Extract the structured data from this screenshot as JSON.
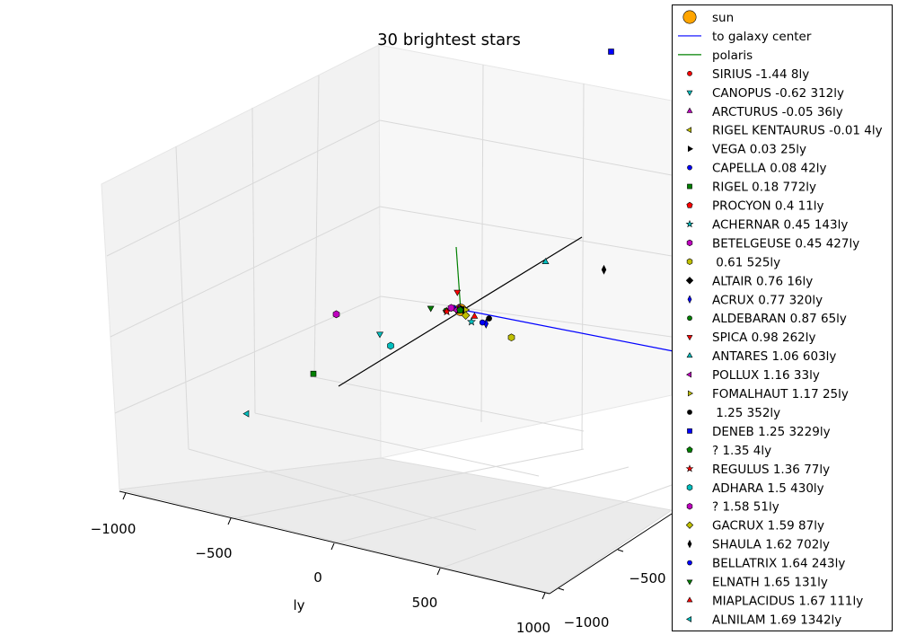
{
  "chart_data": {
    "type": "scatter",
    "projection": "3d",
    "title": "30 brightest stars",
    "xlabel": "ly",
    "x_ticks": [
      "−1000",
      "−500",
      "0",
      "500",
      "1000"
    ],
    "y_ticks_visible": [
      "−500",
      "−1000"
    ],
    "grid": true,
    "legend_placement": "right, outside plot",
    "lines": [
      {
        "name": "to galaxy center",
        "color": "#0000ff"
      },
      {
        "name": "polaris",
        "color": "#008000"
      }
    ],
    "sun": {
      "name": "sun",
      "color": "#ffa500",
      "marker": "circle"
    },
    "stars": [
      {
        "name": "SIRIUS",
        "magnitude": "-1.44",
        "distance": "8ly",
        "marker": "circle",
        "color": "#ff0000",
        "x": 6,
        "y": 4
      },
      {
        "name": "CANOPUS",
        "magnitude": "-0.62",
        "distance": "312ly",
        "marker": "triangle-down",
        "color": "#00bfbf",
        "x": -400,
        "y": 100
      },
      {
        "name": "ARCTURUS",
        "magnitude": "-0.05",
        "distance": "36ly",
        "marker": "triangle-up",
        "color": "#bf00bf",
        "x": 0,
        "y": -25
      },
      {
        "name": "RIGEL KENTAURUS",
        "magnitude": "-0.01",
        "distance": "4ly",
        "marker": "triangle-left",
        "color": "#bfbf00",
        "x": 2,
        "y": 3
      },
      {
        "name": "VEGA",
        "magnitude": "0.03",
        "distance": "25ly",
        "marker": "triangle-right",
        "color": "#000000",
        "x": 10,
        "y": -15
      },
      {
        "name": "CAPELLA",
        "magnitude": "0.08",
        "distance": "42ly",
        "marker": "circle",
        "color": "#0000ff",
        "x": -20,
        "y": -35
      },
      {
        "name": "RIGEL",
        "magnitude": "0.18",
        "distance": "772ly",
        "marker": "square",
        "color": "#008000",
        "x": -800,
        "y": 400
      },
      {
        "name": "PROCYON",
        "magnitude": "0.4",
        "distance": "11ly",
        "marker": "pentagon",
        "color": "#ff0000",
        "x": -10,
        "y": 0
      },
      {
        "name": "ACHERNAR",
        "magnitude": "0.45",
        "distance": "143ly",
        "marker": "star",
        "color": "#00bfbf",
        "x": 0,
        "y": 150
      },
      {
        "name": "BETELGEUSE",
        "magnitude": "0.45",
        "distance": "427ly",
        "marker": "hexagon",
        "color": "#bf00bf",
        "x": -500,
        "y": -200
      },
      {
        "name": "",
        "magnitude": "0.61",
        "distance": "525ly",
        "marker": "hexagon",
        "color": "#bfbf00",
        "x": 100,
        "y": 400
      },
      {
        "name": "ALTAIR",
        "magnitude": "0.76",
        "distance": "16ly",
        "marker": "diamond",
        "color": "#000000",
        "x": 10,
        "y": 12
      },
      {
        "name": "ACRUX",
        "magnitude": "0.77",
        "distance": "320ly",
        "marker": "thin-diamond",
        "color": "#0000ff",
        "x": 50,
        "y": 200
      },
      {
        "name": "ALDEBARAN",
        "magnitude": "0.87",
        "distance": "65ly",
        "marker": "circle",
        "color": "#008000",
        "x": -60,
        "y": -20
      },
      {
        "name": "SPICA",
        "magnitude": "0.98",
        "distance": "262ly",
        "marker": "triangle-down",
        "color": "#ff0000",
        "x": 50,
        "y": -200
      },
      {
        "name": "ANTARES",
        "magnitude": "1.06",
        "distance": "603ly",
        "marker": "triangle-up",
        "color": "#00bfbf",
        "x": 500,
        "y": -350
      },
      {
        "name": "POLLUX",
        "magnitude": "1.16",
        "distance": "33ly",
        "marker": "triangle-left",
        "color": "#bf00bf",
        "x": -20,
        "y": -10
      },
      {
        "name": "FOMALHAUT",
        "magnitude": "1.17",
        "distance": "25ly",
        "marker": "triangle-right",
        "color": "#bfbf00",
        "x": 20,
        "y": 10
      },
      {
        "name": "",
        "magnitude": "1.25",
        "distance": "352ly",
        "marker": "circle",
        "color": "#000000",
        "x": 80,
        "y": 150
      },
      {
        "name": "DENEB",
        "magnitude": "1.25",
        "distance": "3229ly",
        "marker": "square",
        "color": "#0000ff",
        "x": 1500,
        "y": -2500
      },
      {
        "name": "?",
        "magnitude": "1.35",
        "distance": "4ly",
        "marker": "pentagon",
        "color": "#008000",
        "x": -3,
        "y": 2
      },
      {
        "name": "REGULUS",
        "magnitude": "1.36",
        "distance": "77ly",
        "marker": "star",
        "color": "#ff0000",
        "x": -60,
        "y": -10
      },
      {
        "name": "ADHARA",
        "magnitude": "1.5",
        "distance": "430ly",
        "marker": "hexagon",
        "color": "#00bfbf",
        "x": -400,
        "y": 250
      },
      {
        "name": "?",
        "magnitude": "1.58",
        "distance": "51ly",
        "marker": "hexagon",
        "color": "#bf00bf",
        "x": -30,
        "y": -40
      },
      {
        "name": "GACRUX",
        "magnitude": "1.59",
        "distance": "87ly",
        "marker": "diamond",
        "color": "#bfbf00",
        "x": 0,
        "y": 70
      },
      {
        "name": "SHAULA",
        "magnitude": "1.62",
        "distance": "702ly",
        "marker": "thin-diamond",
        "color": "#000000",
        "x": 700,
        "y": -150
      },
      {
        "name": "BELLATRIX",
        "magnitude": "1.64",
        "distance": "243ly",
        "marker": "circle",
        "color": "#0000ff",
        "x": 40,
        "y": 180
      },
      {
        "name": "ELNATH",
        "magnitude": "1.65",
        "distance": "131ly",
        "marker": "triangle-down",
        "color": "#008000",
        "x": -110,
        "y": -80
      },
      {
        "name": "MIAPLACIDUS",
        "magnitude": "1.67",
        "distance": "111ly",
        "marker": "triangle-up",
        "color": "#ff0000",
        "x": 30,
        "y": 100
      },
      {
        "name": "ALNILAM",
        "magnitude": "1.69",
        "distance": "1342ly",
        "marker": "triangle-left",
        "color": "#00bfbf",
        "x": -1200,
        "y": 700
      }
    ]
  },
  "legend": {
    "entries": [
      {
        "label": "sun",
        "kind": "big-circle",
        "color": "#ffa500"
      },
      {
        "label": "to galaxy center",
        "kind": "line",
        "color": "#0000ff"
      },
      {
        "label": "polaris",
        "kind": "line",
        "color": "#008000"
      },
      {
        "label": "SIRIUS -1.44 8ly",
        "kind": "circle",
        "color": "#ff0000"
      },
      {
        "label": "CANOPUS -0.62 312ly",
        "kind": "triangle-down",
        "color": "#00bfbf"
      },
      {
        "label": "ARCTURUS -0.05 36ly",
        "kind": "triangle-up",
        "color": "#bf00bf"
      },
      {
        "label": "RIGEL KENTAURUS -0.01 4ly",
        "kind": "triangle-left",
        "color": "#bfbf00"
      },
      {
        "label": "VEGA 0.03 25ly",
        "kind": "triangle-right",
        "color": "#000000"
      },
      {
        "label": "CAPELLA 0.08 42ly",
        "kind": "circle",
        "color": "#0000ff"
      },
      {
        "label": "RIGEL 0.18 772ly",
        "kind": "square",
        "color": "#008000"
      },
      {
        "label": "PROCYON 0.4 11ly",
        "kind": "pentagon",
        "color": "#ff0000"
      },
      {
        "label": "ACHERNAR 0.45 143ly",
        "kind": "star",
        "color": "#00bfbf"
      },
      {
        "label": "BETELGEUSE 0.45 427ly",
        "kind": "hexagon",
        "color": "#bf00bf"
      },
      {
        "label": " 0.61 525ly",
        "kind": "hexagon",
        "color": "#bfbf00"
      },
      {
        "label": "ALTAIR 0.76 16ly",
        "kind": "diamond",
        "color": "#000000"
      },
      {
        "label": "ACRUX 0.77 320ly",
        "kind": "thin-diamond",
        "color": "#0000ff"
      },
      {
        "label": "ALDEBARAN 0.87 65ly",
        "kind": "circle",
        "color": "#008000"
      },
      {
        "label": "SPICA 0.98 262ly",
        "kind": "triangle-down",
        "color": "#ff0000"
      },
      {
        "label": "ANTARES 1.06 603ly",
        "kind": "triangle-up",
        "color": "#00bfbf"
      },
      {
        "label": "POLLUX 1.16 33ly",
        "kind": "triangle-left",
        "color": "#bf00bf"
      },
      {
        "label": "FOMALHAUT 1.17 25ly",
        "kind": "triangle-right",
        "color": "#bfbf00"
      },
      {
        "label": " 1.25 352ly",
        "kind": "circle",
        "color": "#000000"
      },
      {
        "label": "DENEB 1.25 3229ly",
        "kind": "square",
        "color": "#0000ff"
      },
      {
        "label": "? 1.35 4ly",
        "kind": "pentagon",
        "color": "#008000"
      },
      {
        "label": "REGULUS 1.36 77ly",
        "kind": "star",
        "color": "#ff0000"
      },
      {
        "label": "ADHARA 1.5 430ly",
        "kind": "hexagon",
        "color": "#00bfbf"
      },
      {
        "label": "? 1.58 51ly",
        "kind": "hexagon",
        "color": "#bf00bf"
      },
      {
        "label": "GACRUX 1.59 87ly",
        "kind": "diamond",
        "color": "#bfbf00"
      },
      {
        "label": "SHAULA 1.62 702ly",
        "kind": "thin-diamond",
        "color": "#000000"
      },
      {
        "label": "BELLATRIX 1.64 243ly",
        "kind": "circle",
        "color": "#0000ff"
      },
      {
        "label": "ELNATH 1.65 131ly",
        "kind": "triangle-down",
        "color": "#008000"
      },
      {
        "label": "MIAPLACIDUS 1.67 111ly",
        "kind": "triangle-up",
        "color": "#ff0000"
      },
      {
        "label": "ALNILAM 1.69 1342ly",
        "kind": "triangle-left",
        "color": "#00bfbf"
      }
    ]
  }
}
